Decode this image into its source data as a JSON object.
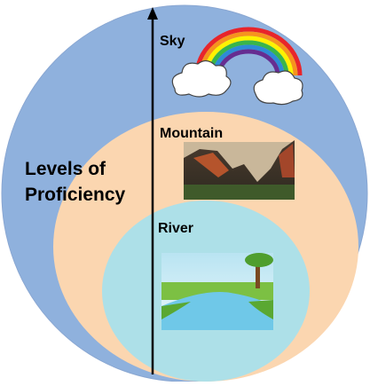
{
  "axis_label": {
    "line1": "Levels of",
    "line2": "Proficiency"
  },
  "levels": [
    {
      "label": "Sky"
    },
    {
      "label": "Mountain"
    },
    {
      "label": "River"
    }
  ]
}
